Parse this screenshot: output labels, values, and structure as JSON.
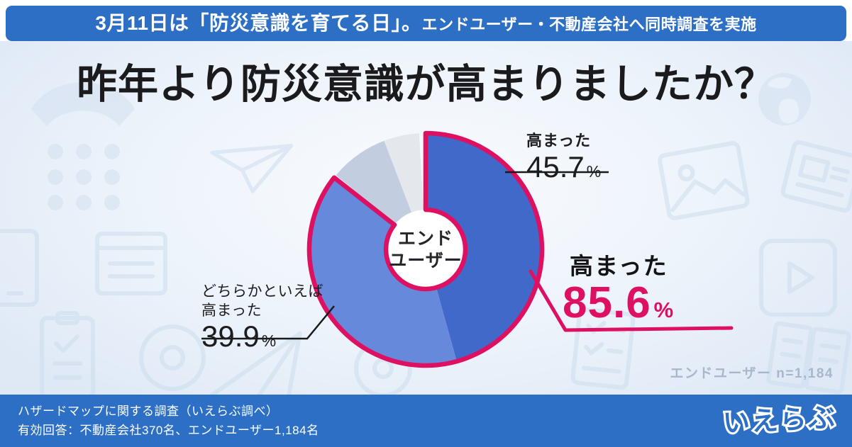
{
  "banner": {
    "text_main": "3月11日は「防災意識を育てる日」。",
    "text_sub": "エンドユーザー・不動産会社へ同時調査を実施"
  },
  "title": "昨年より防災意識が高まりましたか？",
  "chart_data": {
    "type": "pie",
    "donut": true,
    "title": "昨年より防災意識が高まりましたか？",
    "population": "エンドユーザー",
    "n": "1,184",
    "start_angle_deg": 0,
    "direction": "clockwise",
    "segments": [
      {
        "label": "高まった",
        "value": 45.7,
        "color": "#4169c9"
      },
      {
        "label": "どちらかといえば高まった",
        "value": 39.9,
        "color": "#6789db"
      },
      {
        "label": "",
        "value": 8.6,
        "color": "#c2cde0",
        "estimated": true
      },
      {
        "label": "",
        "value": 5.8,
        "color": "#e4e7ec",
        "estimated": true
      }
    ],
    "highlight": {
      "label": "高まった",
      "value": 85.6,
      "includes": [
        "高まった",
        "どちらかといえば高まった"
      ],
      "color": "#de1061"
    },
    "center_label": "エンドユーザー",
    "note": "エンドユーザー  n=1,184"
  },
  "labels": {
    "seg1": {
      "name": "高まった",
      "value": "45.7",
      "unit": "%"
    },
    "seg2": {
      "name_line1": "どちらかといえば",
      "name_line2": "高まった",
      "value": "39.9",
      "unit": "%"
    },
    "highlight": {
      "name": "高まった",
      "value": "85.6",
      "unit": "%"
    },
    "center_line1": "エンド",
    "center_line2": "ユーザー",
    "sample_note": "エンドユーザー  n=1,184"
  },
  "footer": {
    "line1": "ハザードマップに関する調査（いえらぶ調べ）",
    "line2": "有効回答：不動産会社370名、エンドユーザー1,184名",
    "logo_text": "いえらぶ"
  },
  "colors": {
    "banner_bg": "#2d6fc5",
    "footer_bg": "#2d6fc5",
    "accent_pink": "#de1061",
    "seg_dark_blue": "#4169c9",
    "seg_mid_blue": "#6789db",
    "seg_gray_blue": "#c2cde0",
    "seg_light_gray": "#e4e7ec",
    "note_text": "#a7b8cc",
    "bg_light": "#e3edf8"
  },
  "background_icons": [
    "phone",
    "globe",
    "document",
    "photo",
    "paper-plane",
    "paper-plane-small",
    "tablet",
    "browser-window",
    "clipboard",
    "aperture",
    "play-video",
    "book",
    "disc",
    "checklist"
  ]
}
